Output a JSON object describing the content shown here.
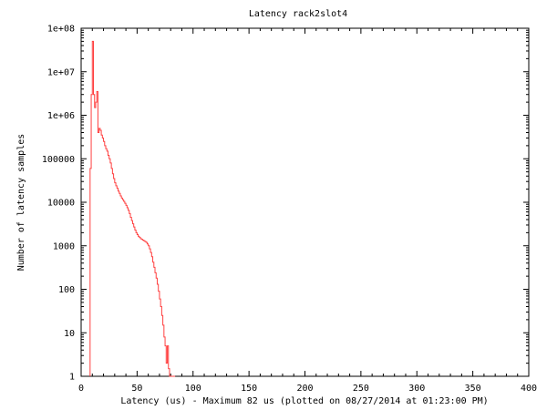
{
  "chart_data": {
    "type": "line",
    "title": "Latency rack2slot4",
    "xlabel": "Latency (us) - Maximum 82 us (plotted on 08/27/2014 at 01:23:00 PM)",
    "ylabel": "Number of latency samples",
    "xlim": [
      0,
      400
    ],
    "ylim": [
      1,
      100000000
    ],
    "yscale": "log",
    "x_ticks": [
      0,
      50,
      100,
      150,
      200,
      250,
      300,
      350,
      400
    ],
    "x_tick_labels": [
      "0",
      "50",
      "100",
      "150",
      "200",
      "250",
      "300",
      "350",
      "400"
    ],
    "y_ticks": [
      1,
      10,
      100,
      1000,
      10000,
      100000,
      1000000,
      10000000,
      100000000
    ],
    "y_tick_labels": [
      "1",
      "10",
      "100",
      "1000",
      "10000",
      "100000",
      "1e+06",
      "1e+07",
      "1e+08"
    ],
    "grid": false,
    "series": [
      {
        "color": "#ff4040",
        "step": true,
        "x": [
          8,
          9,
          10,
          11,
          12,
          13,
          14,
          15,
          16,
          17,
          18,
          19,
          20,
          21,
          22,
          23,
          24,
          25,
          26,
          27,
          28,
          29,
          30,
          31,
          32,
          33,
          34,
          35,
          36,
          37,
          38,
          39,
          40,
          41,
          42,
          43,
          44,
          45,
          46,
          47,
          48,
          49,
          50,
          51,
          52,
          53,
          54,
          55,
          56,
          57,
          58,
          59,
          60,
          61,
          62,
          63,
          64,
          65,
          66,
          67,
          68,
          69,
          70,
          71,
          72,
          73,
          74,
          75,
          76,
          77,
          78,
          79,
          80,
          81,
          82,
          83
        ],
        "values": [
          60000,
          3000000,
          50000000,
          3000000,
          1500000,
          2000000,
          3500000,
          400000,
          500000,
          450000,
          350000,
          300000,
          250000,
          200000,
          170000,
          150000,
          120000,
          100000,
          80000,
          60000,
          45000,
          35000,
          28000,
          24000,
          21000,
          18000,
          16000,
          14000,
          12500,
          11500,
          10500,
          9500,
          8500,
          7500,
          6500,
          5500,
          4500,
          3800,
          3200,
          2700,
          2300,
          2000,
          1800,
          1650,
          1550,
          1450,
          1400,
          1350,
          1300,
          1250,
          1200,
          1100,
          1000,
          850,
          700,
          560,
          420,
          320,
          240,
          180,
          130,
          90,
          60,
          40,
          25,
          15,
          8,
          5,
          2,
          5,
          1.5,
          1,
          1,
          1,
          1,
          1
        ]
      }
    ]
  }
}
